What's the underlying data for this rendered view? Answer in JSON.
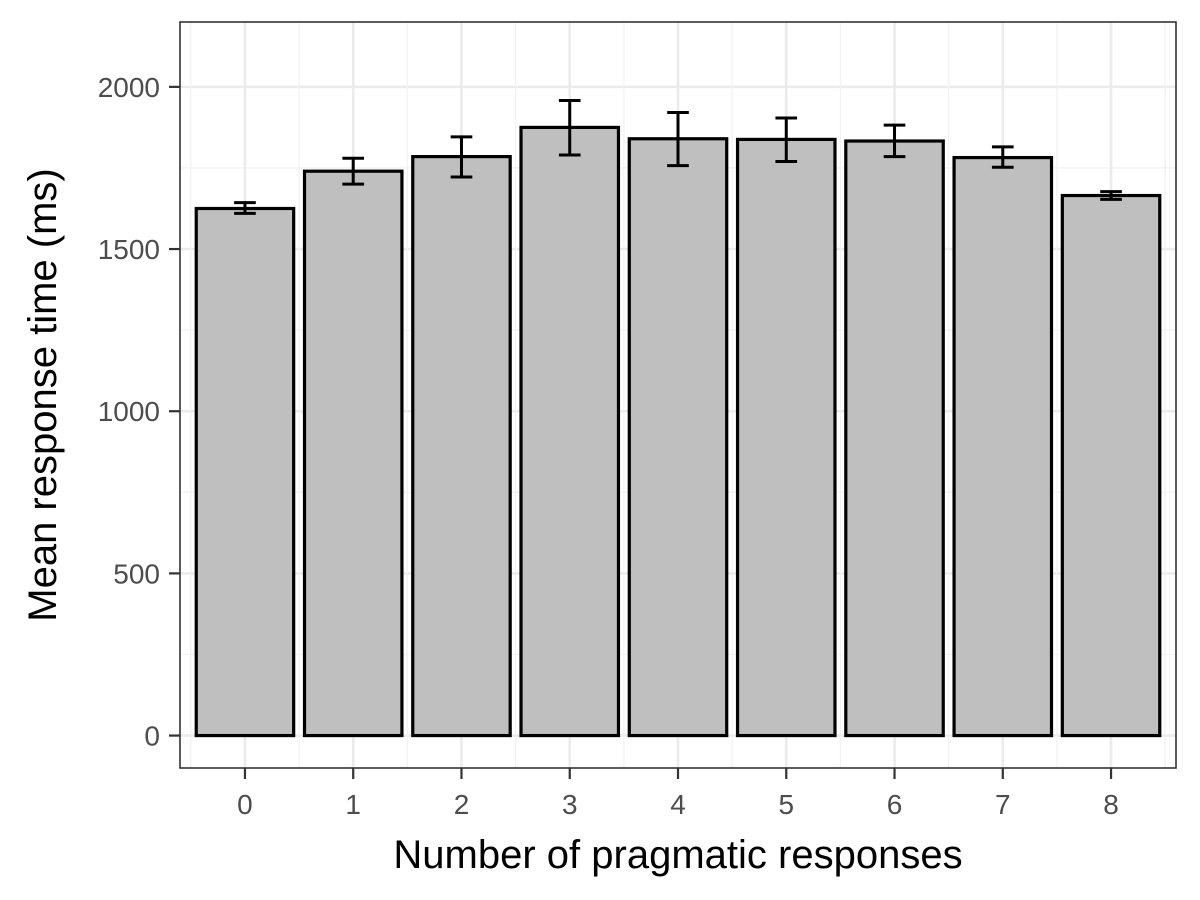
{
  "chart_data": {
    "type": "bar",
    "xlabel": "Number of pragmatic responses",
    "ylabel": "Mean response time (ms)",
    "categories": [
      "0",
      "1",
      "2",
      "3",
      "4",
      "5",
      "6",
      "7",
      "8"
    ],
    "values": [
      1625,
      1740,
      1785,
      1875,
      1840,
      1838,
      1833,
      1782,
      1665
    ],
    "error_lower": [
      1610,
      1700,
      1722,
      1790,
      1757,
      1770,
      1785,
      1752,
      1653
    ],
    "error_upper": [
      1643,
      1780,
      1846,
      1958,
      1921,
      1904,
      1882,
      1815,
      1677
    ],
    "ylim": [
      -100,
      2200
    ],
    "yticks": [
      0,
      500,
      1000,
      1500,
      2000
    ],
    "grid": true,
    "bar_fill": "#bfbfbf",
    "bar_stroke": "#000000"
  }
}
